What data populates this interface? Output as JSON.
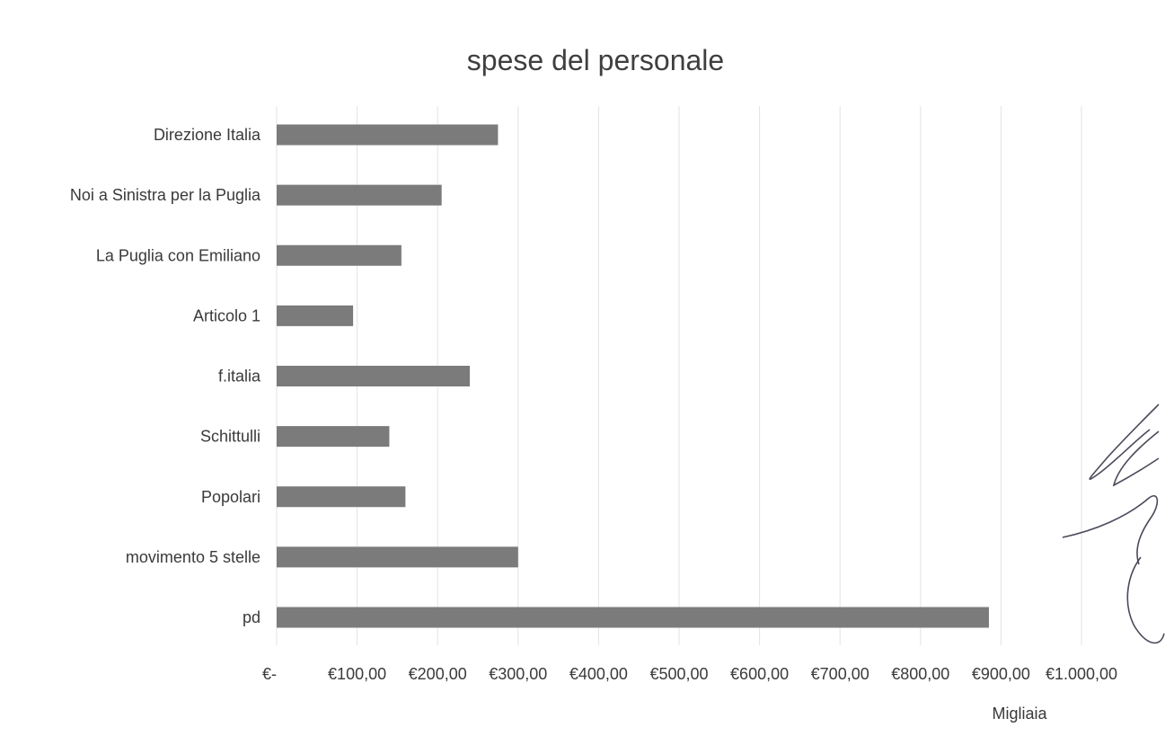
{
  "chart_data": {
    "type": "bar",
    "orientation": "horizontal",
    "title": "spese del personale",
    "categories": [
      "Direzione Italia",
      "Noi a Sinistra per la Puglia",
      "La Puglia con Emiliano",
      "Articolo 1",
      "f.italia",
      "Schittulli",
      "Popolari",
      "movimento 5 stelle",
      "pd"
    ],
    "values": [
      275,
      205,
      155,
      95,
      240,
      140,
      160,
      300,
      885
    ],
    "x_ticks": [
      0,
      100,
      200,
      300,
      400,
      500,
      600,
      700,
      800,
      900,
      1000
    ],
    "x_tick_labels": [
      "€-",
      "€100,00",
      "€200,00",
      "€300,00",
      "€400,00",
      "€500,00",
      "€600,00",
      "€700,00",
      "€800,00",
      "€900,00",
      "€1.000,00"
    ],
    "xlim": [
      0,
      1000
    ],
    "x_unit_label": "Migliaia",
    "grid": true,
    "legend": "none",
    "bar_color": "#7b7b7b"
  },
  "signature_text": "handwritten signature"
}
